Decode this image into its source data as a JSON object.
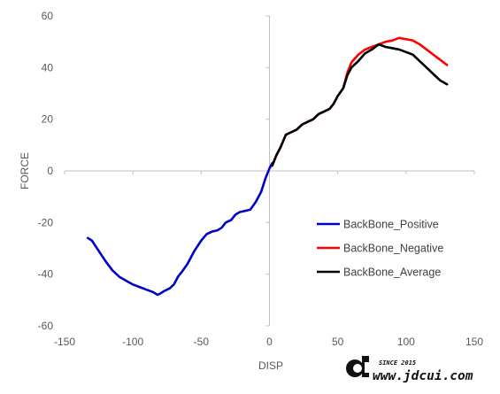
{
  "chart_data": {
    "type": "line",
    "xlabel": "DISP",
    "ylabel": "FORCE",
    "xlim": [
      -150,
      150
    ],
    "ylim": [
      -60,
      60
    ],
    "xticks": [
      -150,
      -100,
      -50,
      0,
      50,
      100,
      150
    ],
    "yticks": [
      60,
      40,
      20,
      0,
      -20,
      -40,
      -60
    ],
    "grid": false,
    "legend_position": "right",
    "series": [
      {
        "name": "BackBone_Positive",
        "color": "#0000cc",
        "points": [
          [
            -133,
            -26
          ],
          [
            -130,
            -27
          ],
          [
            -125,
            -31
          ],
          [
            -120,
            -35
          ],
          [
            -115,
            -38.5
          ],
          [
            -110,
            -41
          ],
          [
            -105,
            -42.5
          ],
          [
            -100,
            -44
          ],
          [
            -95,
            -45
          ],
          [
            -90,
            -46
          ],
          [
            -85,
            -47
          ],
          [
            -82,
            -48
          ],
          [
            -80,
            -47.5
          ],
          [
            -77,
            -46.5
          ],
          [
            -73,
            -45.5
          ],
          [
            -70,
            -44
          ],
          [
            -67,
            -41
          ],
          [
            -64,
            -39
          ],
          [
            -60,
            -36
          ],
          [
            -55,
            -31
          ],
          [
            -50,
            -27
          ],
          [
            -46,
            -24.5
          ],
          [
            -42,
            -23.5
          ],
          [
            -38,
            -23
          ],
          [
            -35,
            -22
          ],
          [
            -32,
            -20
          ],
          [
            -28,
            -19
          ],
          [
            -25,
            -17
          ],
          [
            -22,
            -16
          ],
          [
            -18,
            -15.5
          ],
          [
            -14,
            -15
          ],
          [
            -10,
            -12
          ],
          [
            -6,
            -8
          ],
          [
            -3,
            -3
          ],
          [
            0,
            1
          ],
          [
            2,
            3
          ]
        ]
      },
      {
        "name": "BackBone_Negative",
        "color": "#ff0000",
        "points": [
          [
            2,
            2
          ],
          [
            5,
            6
          ],
          [
            8,
            9
          ],
          [
            12,
            14
          ],
          [
            16,
            15
          ],
          [
            20,
            16
          ],
          [
            24,
            18
          ],
          [
            28,
            19
          ],
          [
            32,
            20
          ],
          [
            36,
            22
          ],
          [
            40,
            23
          ],
          [
            44,
            24
          ],
          [
            47,
            26
          ],
          [
            50,
            29
          ],
          [
            54,
            32
          ],
          [
            57,
            38
          ],
          [
            60,
            42
          ],
          [
            65,
            45
          ],
          [
            70,
            47
          ],
          [
            75,
            48
          ],
          [
            80,
            49
          ],
          [
            85,
            50
          ],
          [
            90,
            50.5
          ],
          [
            95,
            51.5
          ],
          [
            100,
            51
          ],
          [
            105,
            50.5
          ],
          [
            110,
            49
          ],
          [
            115,
            47
          ],
          [
            120,
            45
          ],
          [
            125,
            43
          ],
          [
            130,
            41
          ]
        ]
      },
      {
        "name": "BackBone_Average",
        "color": "#000000",
        "points": [
          [
            2,
            2
          ],
          [
            5,
            6
          ],
          [
            8,
            9
          ],
          [
            12,
            14
          ],
          [
            16,
            15
          ],
          [
            20,
            16
          ],
          [
            24,
            18
          ],
          [
            28,
            19
          ],
          [
            32,
            20
          ],
          [
            36,
            22
          ],
          [
            40,
            23
          ],
          [
            44,
            24
          ],
          [
            47,
            26
          ],
          [
            50,
            29
          ],
          [
            54,
            32
          ],
          [
            57,
            37
          ],
          [
            60,
            40
          ],
          [
            65,
            42.5
          ],
          [
            70,
            45.5
          ],
          [
            75,
            47
          ],
          [
            80,
            49
          ],
          [
            85,
            48
          ],
          [
            90,
            47.5
          ],
          [
            95,
            47
          ],
          [
            100,
            46
          ],
          [
            105,
            45
          ],
          [
            110,
            42.5
          ],
          [
            115,
            40
          ],
          [
            120,
            37.5
          ],
          [
            125,
            35
          ],
          [
            130,
            33.5
          ]
        ]
      }
    ]
  },
  "watermark": {
    "logo_letters": "cd",
    "since": "SINCE 2015",
    "url": "www.jdcui.com"
  }
}
